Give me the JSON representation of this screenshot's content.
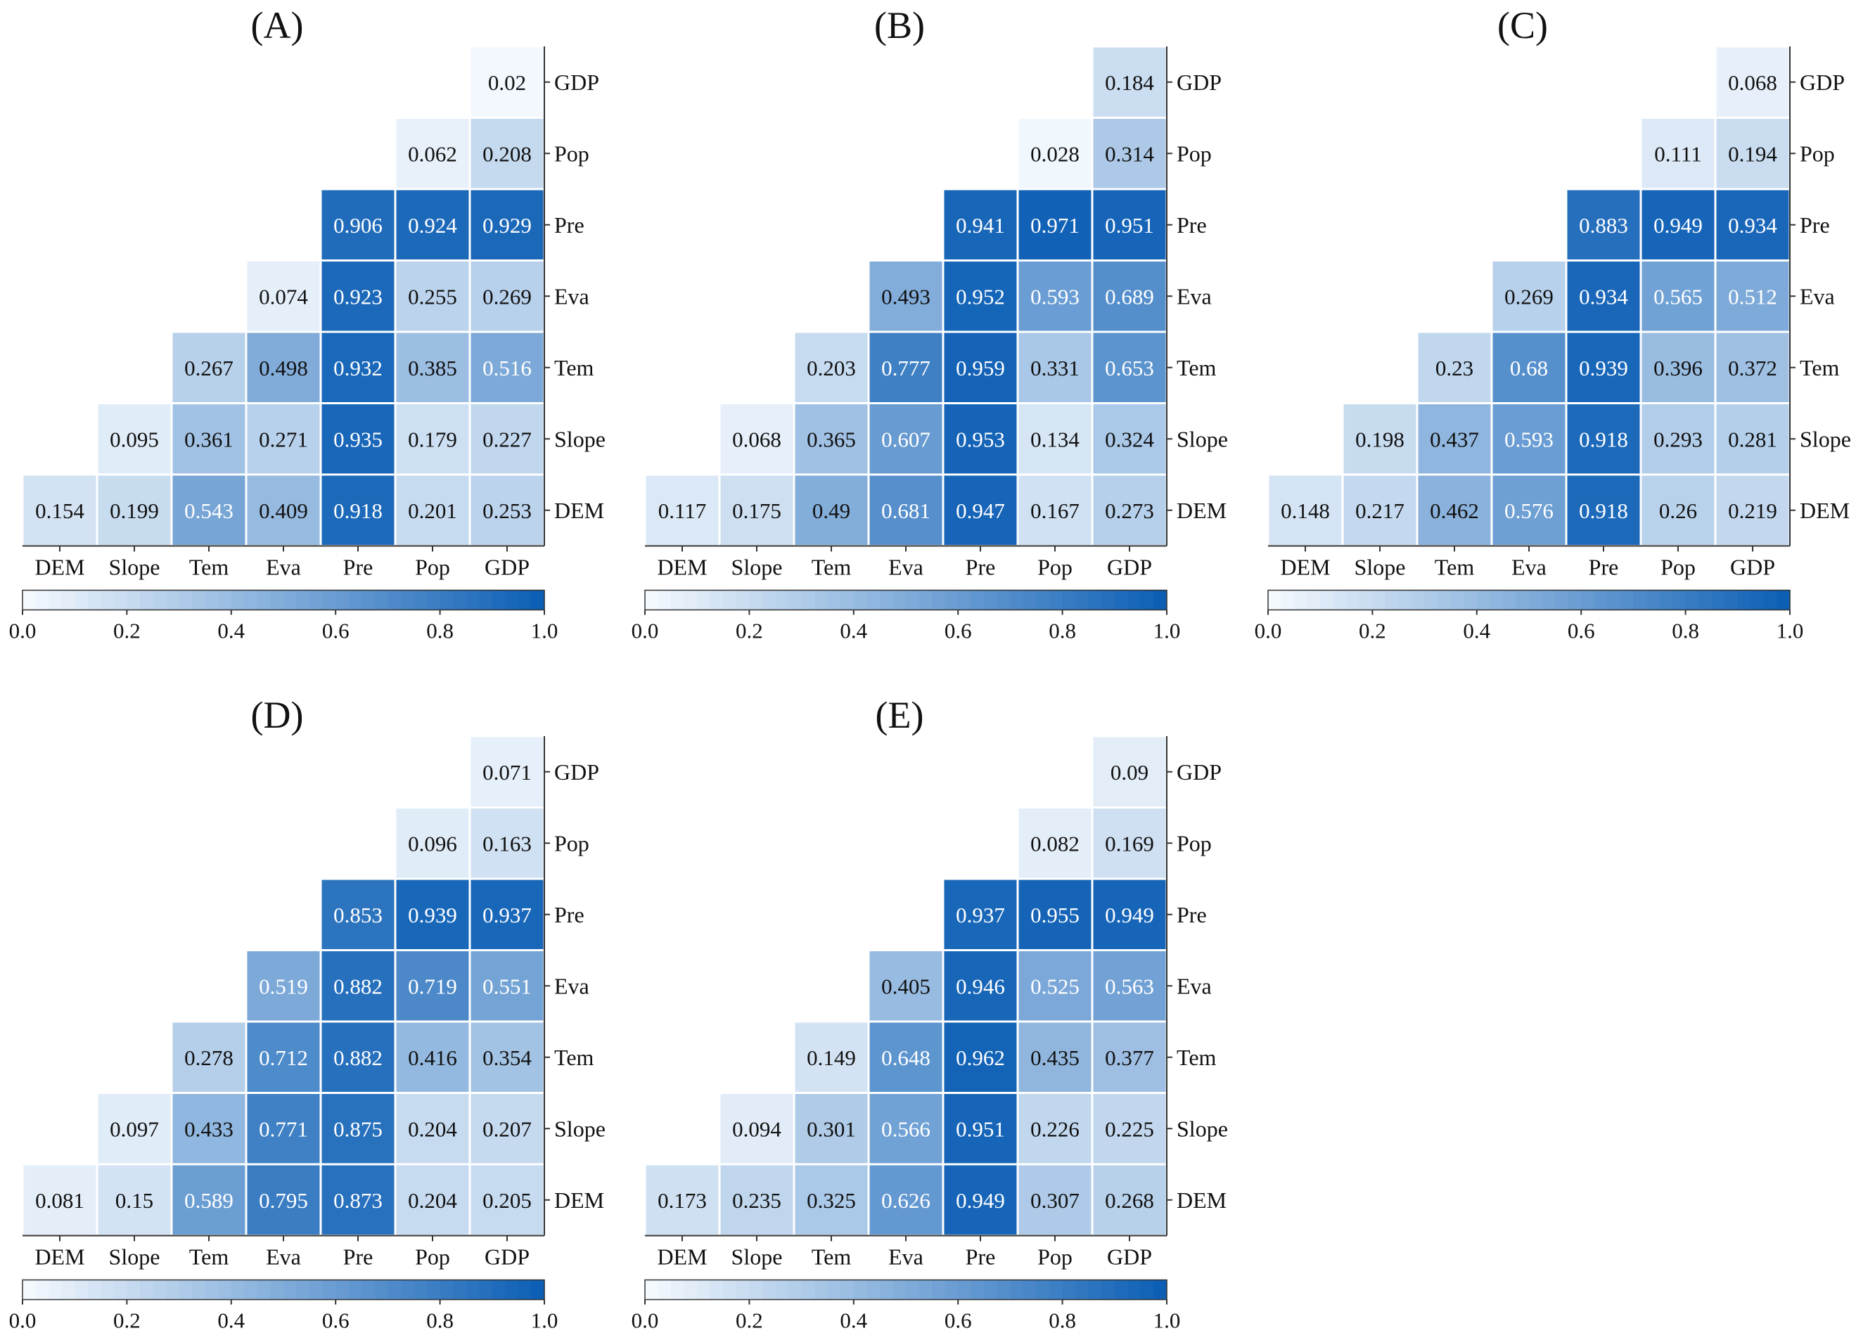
{
  "chart_data": [
    {
      "type": "heatmap",
      "title": "(A)",
      "x_labels": [
        "DEM",
        "Slope",
        "Tem",
        "Eva",
        "Pre",
        "Pop",
        "GDP"
      ],
      "y_labels": [
        "GDP",
        "Pop",
        "Pre",
        "Eva",
        "Tem",
        "Slope",
        "DEM"
      ],
      "values": [
        [
          null,
          null,
          null,
          null,
          null,
          null,
          "0.02"
        ],
        [
          null,
          null,
          null,
          null,
          null,
          "0.062",
          "0.208"
        ],
        [
          null,
          null,
          null,
          null,
          "0.906",
          "0.924",
          "0.929"
        ],
        [
          null,
          null,
          null,
          "0.074",
          "0.923",
          "0.255",
          "0.269"
        ],
        [
          null,
          null,
          "0.267",
          "0.498",
          "0.932",
          "0.385",
          "0.516"
        ],
        [
          null,
          "0.095",
          "0.361",
          "0.271",
          "0.935",
          "0.179",
          "0.227"
        ],
        [
          "0.154",
          "0.199",
          "0.543",
          "0.409",
          "0.918",
          "0.201",
          "0.253"
        ]
      ],
      "colorbar": {
        "range": [
          0,
          1
        ],
        "ticks": [
          "0.0",
          "0.2",
          "0.4",
          "0.6",
          "0.8",
          "1.0"
        ]
      }
    },
    {
      "type": "heatmap",
      "title": "(B)",
      "x_labels": [
        "DEM",
        "Slope",
        "Tem",
        "Eva",
        "Pre",
        "Pop",
        "GDP"
      ],
      "y_labels": [
        "GDP",
        "Pop",
        "Pre",
        "Eva",
        "Tem",
        "Slope",
        "DEM"
      ],
      "values": [
        [
          null,
          null,
          null,
          null,
          null,
          null,
          "0.184"
        ],
        [
          null,
          null,
          null,
          null,
          null,
          "0.028",
          "0.314"
        ],
        [
          null,
          null,
          null,
          null,
          "0.941",
          "0.971",
          "0.951"
        ],
        [
          null,
          null,
          null,
          "0.493",
          "0.952",
          "0.593",
          "0.689"
        ],
        [
          null,
          null,
          "0.203",
          "0.777",
          "0.959",
          "0.331",
          "0.653"
        ],
        [
          null,
          "0.068",
          "0.365",
          "0.607",
          "0.953",
          "0.134",
          "0.324"
        ],
        [
          "0.117",
          "0.175",
          "0.49",
          "0.681",
          "0.947",
          "0.167",
          "0.273"
        ]
      ],
      "colorbar": {
        "range": [
          0,
          1
        ],
        "ticks": [
          "0.0",
          "0.2",
          "0.4",
          "0.6",
          "0.8",
          "1.0"
        ]
      }
    },
    {
      "type": "heatmap",
      "title": "(C)",
      "x_labels": [
        "DEM",
        "Slope",
        "Tem",
        "Eva",
        "Pre",
        "Pop",
        "GDP"
      ],
      "y_labels": [
        "GDP",
        "Pop",
        "Pre",
        "Eva",
        "Tem",
        "Slope",
        "DEM"
      ],
      "values": [
        [
          null,
          null,
          null,
          null,
          null,
          null,
          "0.068"
        ],
        [
          null,
          null,
          null,
          null,
          null,
          "0.111",
          "0.194"
        ],
        [
          null,
          null,
          null,
          null,
          "0.883",
          "0.949",
          "0.934"
        ],
        [
          null,
          null,
          null,
          "0.269",
          "0.934",
          "0.565",
          "0.512"
        ],
        [
          null,
          null,
          "0.23",
          "0.68",
          "0.939",
          "0.396",
          "0.372"
        ],
        [
          null,
          "0.198",
          "0.437",
          "0.593",
          "0.918",
          "0.293",
          "0.281"
        ],
        [
          "0.148",
          "0.217",
          "0.462",
          "0.576",
          "0.918",
          "0.26",
          "0.219"
        ]
      ],
      "colorbar": {
        "range": [
          0,
          1
        ],
        "ticks": [
          "0.0",
          "0.2",
          "0.4",
          "0.6",
          "0.8",
          "1.0"
        ]
      }
    },
    {
      "type": "heatmap",
      "title": "(D)",
      "x_labels": [
        "DEM",
        "Slope",
        "Tem",
        "Eva",
        "Pre",
        "Pop",
        "GDP"
      ],
      "y_labels": [
        "GDP",
        "Pop",
        "Pre",
        "Eva",
        "Tem",
        "Slope",
        "DEM"
      ],
      "values": [
        [
          null,
          null,
          null,
          null,
          null,
          null,
          "0.071"
        ],
        [
          null,
          null,
          null,
          null,
          null,
          "0.096",
          "0.163"
        ],
        [
          null,
          null,
          null,
          null,
          "0.853",
          "0.939",
          "0.937"
        ],
        [
          null,
          null,
          null,
          "0.519",
          "0.882",
          "0.719",
          "0.551"
        ],
        [
          null,
          null,
          "0.278",
          "0.712",
          "0.882",
          "0.416",
          "0.354"
        ],
        [
          null,
          "0.097",
          "0.433",
          "0.771",
          "0.875",
          "0.204",
          "0.207"
        ],
        [
          "0.081",
          "0.15",
          "0.589",
          "0.795",
          "0.873",
          "0.204",
          "0.205"
        ]
      ],
      "colorbar": {
        "range": [
          0,
          1
        ],
        "ticks": [
          "0.0",
          "0.2",
          "0.4",
          "0.6",
          "0.8",
          "1.0"
        ]
      }
    },
    {
      "type": "heatmap",
      "title": "(E)",
      "x_labels": [
        "DEM",
        "Slope",
        "Tem",
        "Eva",
        "Pre",
        "Pop",
        "GDP"
      ],
      "y_labels": [
        "GDP",
        "Pop",
        "Pre",
        "Eva",
        "Tem",
        "Slope",
        "DEM"
      ],
      "values": [
        [
          null,
          null,
          null,
          null,
          null,
          null,
          "0.09"
        ],
        [
          null,
          null,
          null,
          null,
          null,
          "0.082",
          "0.169"
        ],
        [
          null,
          null,
          null,
          null,
          "0.937",
          "0.955",
          "0.949"
        ],
        [
          null,
          null,
          null,
          "0.405",
          "0.946",
          "0.525",
          "0.563"
        ],
        [
          null,
          null,
          "0.149",
          "0.648",
          "0.962",
          "0.435",
          "0.377"
        ],
        [
          null,
          "0.094",
          "0.301",
          "0.566",
          "0.951",
          "0.226",
          "0.225"
        ],
        [
          "0.173",
          "0.235",
          "0.325",
          "0.626",
          "0.949",
          "0.307",
          "0.268"
        ]
      ],
      "colorbar": {
        "range": [
          0,
          1
        ],
        "ticks": [
          "0.0",
          "0.2",
          "0.4",
          "0.6",
          "0.8",
          "1.0"
        ]
      }
    }
  ],
  "colors": {
    "low": "#f7fbff",
    "high": "#0a5db4",
    "text_dark": "#111111",
    "text_light": "#ffffff"
  }
}
